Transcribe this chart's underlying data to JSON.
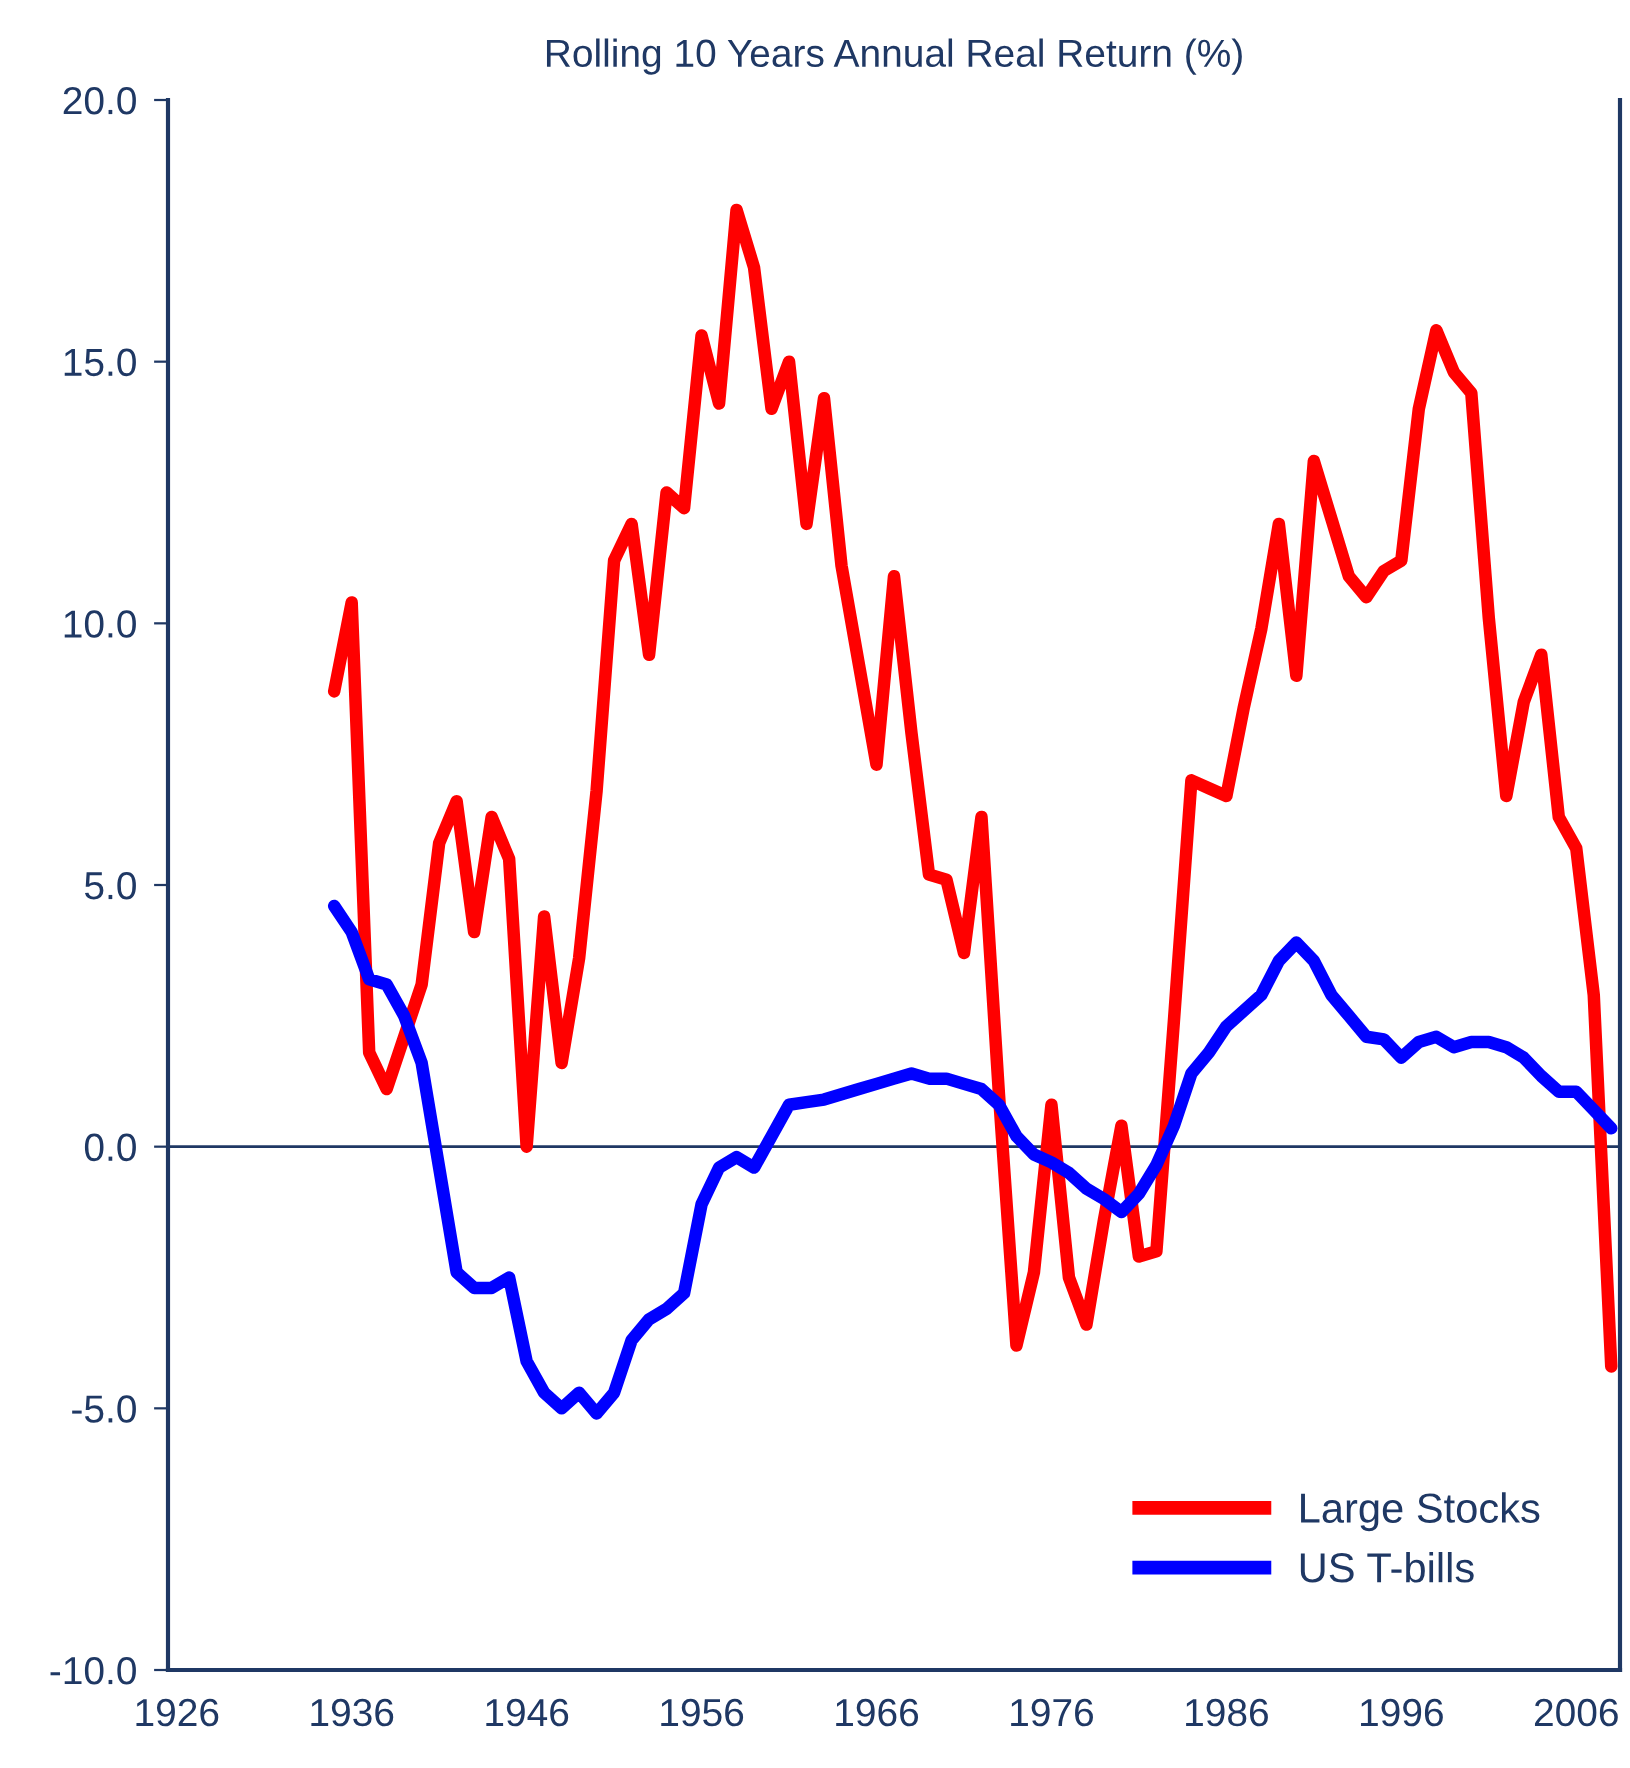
{
  "chart_data": {
    "type": "line",
    "title": "Rolling 10 Years Annual Real Return (%)",
    "x": [
      1935,
      1936,
      1937,
      1938,
      1939,
      1940,
      1941,
      1942,
      1943,
      1944,
      1945,
      1946,
      1947,
      1948,
      1949,
      1950,
      1951,
      1952,
      1953,
      1954,
      1955,
      1956,
      1957,
      1958,
      1959,
      1960,
      1961,
      1962,
      1963,
      1964,
      1965,
      1966,
      1967,
      1968,
      1969,
      1970,
      1971,
      1972,
      1973,
      1974,
      1975,
      1976,
      1977,
      1978,
      1979,
      1980,
      1981,
      1982,
      1983,
      1984,
      1985,
      1986,
      1987,
      1988,
      1989,
      1990,
      1991,
      1992,
      1993,
      1994,
      1995,
      1996,
      1997,
      1998,
      1999,
      2000,
      2001,
      2002,
      2003,
      2004,
      2005,
      2006,
      2007,
      2008
    ],
    "series": [
      {
        "name": "Large Stocks",
        "color": "#ff0000",
        "values": [
          8.7,
          10.4,
          1.8,
          1.1,
          2.1,
          3.1,
          5.8,
          6.6,
          4.1,
          6.3,
          5.5,
          0.0,
          4.4,
          1.6,
          3.6,
          6.8,
          11.2,
          11.9,
          9.4,
          12.5,
          12.2,
          15.5,
          14.2,
          17.9,
          16.8,
          14.1,
          15.0,
          11.9,
          14.3,
          11.1,
          9.2,
          7.3,
          10.9,
          7.9,
          5.2,
          5.1,
          3.7,
          6.3,
          1.0,
          -3.8,
          -2.4,
          0.8,
          -2.5,
          -3.4,
          -1.4,
          0.4,
          -2.1,
          -2.0,
          2.4,
          7.0,
          6.85,
          6.7,
          8.4,
          9.9,
          11.9,
          9.0,
          13.1,
          12.0,
          10.9,
          10.5,
          11.0,
          11.2,
          14.1,
          15.6,
          14.8,
          14.4,
          10.1,
          6.7,
          8.5,
          9.4,
          6.3,
          5.7,
          2.9,
          -4.2
        ]
      },
      {
        "name": "US T-bills",
        "color": "#0000ff",
        "values": [
          4.6,
          4.1,
          3.2,
          3.1,
          2.5,
          1.6,
          -0.4,
          -2.4,
          -2.7,
          -2.7,
          -2.5,
          -4.1,
          -4.7,
          -5.0,
          -4.7,
          -5.1,
          -4.7,
          -3.7,
          -3.3,
          -3.1,
          -2.8,
          -1.1,
          -0.4,
          -0.2,
          -0.4,
          0.2,
          0.8,
          0.85,
          0.9,
          1.0,
          1.1,
          1.2,
          1.3,
          1.4,
          1.3,
          1.3,
          1.2,
          1.1,
          0.8,
          0.2,
          -0.15,
          -0.3,
          -0.5,
          -0.8,
          -1.0,
          -1.25,
          -0.9,
          -0.35,
          0.4,
          1.4,
          1.8,
          2.3,
          2.6,
          2.9,
          3.55,
          3.9,
          3.55,
          2.9,
          2.5,
          2.1,
          2.05,
          1.7,
          2.0,
          2.1,
          1.9,
          2.0,
          2.0,
          1.9,
          1.7,
          1.35,
          1.05,
          1.05,
          0.7,
          0.35
        ]
      }
    ],
    "xlim": [
      1925.5,
      2008.5
    ],
    "xticks": [
      1926,
      1936,
      1946,
      1956,
      1966,
      1976,
      1986,
      1996,
      2006
    ],
    "ylim": [
      -10,
      20
    ],
    "yticks": [
      {
        "value": -10,
        "label": "-10.0"
      },
      {
        "value": -5,
        "label": "-5.0"
      },
      {
        "value": 0,
        "label": "0.0"
      },
      {
        "value": 5,
        "label": "5.0"
      },
      {
        "value": 10,
        "label": "10.0"
      },
      {
        "value": 15,
        "label": "15.0"
      },
      {
        "value": 20,
        "label": "20.0"
      }
    ],
    "ref_lines": [
      {
        "axis": "y",
        "value": 0,
        "color": "#1f3864"
      }
    ],
    "grid": false,
    "legend": "bottom right",
    "marker": "none",
    "line_style": "solid"
  }
}
